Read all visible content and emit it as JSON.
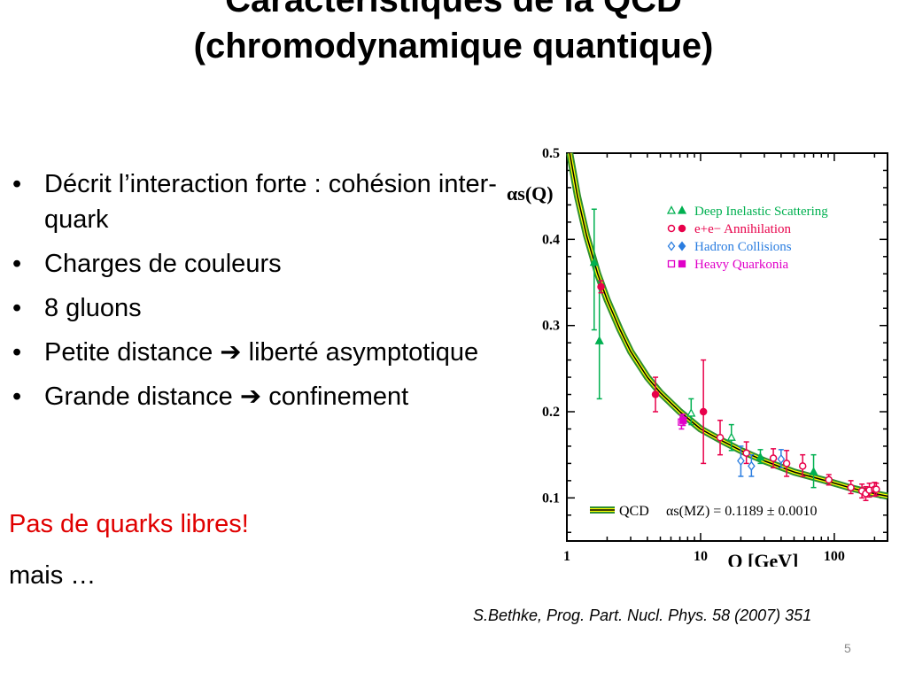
{
  "slide": {
    "title_line1": "Caractéristiques de la QCD",
    "title_line2": "(chromodynamique quantique)",
    "bullets": [
      {
        "bullet": "•",
        "text": "Décrit l’interaction forte : cohésion inter-quark"
      },
      {
        "bullet": "•",
        "text": "Charges de couleurs"
      },
      {
        "bullet": "•",
        "text": "8 gluons"
      },
      {
        "bullet": "•",
        "text": "Petite distance ➔ liberté asymptotique"
      },
      {
        "bullet": "•",
        "text": "Grande distance ➔ confinement"
      }
    ],
    "highlight": "Pas de quarks libres!",
    "continuation": "mais …",
    "citation": "S.Bethke, Prog. Part. Nucl. Phys. 58 (2007) 351",
    "page_number": "5"
  },
  "colors": {
    "dis": "#00b050",
    "ee": "#e8004a",
    "hadron": "#2a7de0",
    "quarkonia": "#e000c8",
    "band": "#2f8f2f",
    "band_fill": "#ffff00"
  },
  "chart_data": {
    "type": "scatter",
    "xscale": "log",
    "xlim": [
      1,
      250
    ],
    "ylim": [
      0.05,
      0.5
    ],
    "xlabel": "Q [GeV]",
    "ylabel": "αs(Q)",
    "xticks": [
      {
        "v": 1,
        "label": "1"
      },
      {
        "v": 10,
        "label": "10"
      },
      {
        "v": 100,
        "label": "100"
      }
    ],
    "yticks": [
      {
        "v": 0.1,
        "label": "0.1"
      },
      {
        "v": 0.2,
        "label": "0.2"
      },
      {
        "v": 0.3,
        "label": "0.3"
      },
      {
        "v": 0.4,
        "label": "0.4"
      },
      {
        "v": 0.5,
        "label": "0.5"
      }
    ],
    "grid": false,
    "legend_position": "top-right",
    "curve": {
      "name": "QCD",
      "annotation": "αs(MZ) = 0.1189 ± 0.0010",
      "points": [
        [
          1.05,
          0.5
        ],
        [
          1.2,
          0.45
        ],
        [
          1.4,
          0.405
        ],
        [
          1.7,
          0.36
        ],
        [
          2,
          0.33
        ],
        [
          2.5,
          0.295
        ],
        [
          3,
          0.27
        ],
        [
          4,
          0.24
        ],
        [
          5,
          0.222
        ],
        [
          7,
          0.2
        ],
        [
          10,
          0.18
        ],
        [
          15,
          0.165
        ],
        [
          20,
          0.155
        ],
        [
          30,
          0.143
        ],
        [
          50,
          0.13
        ],
        [
          91.2,
          0.1189
        ],
        [
          130,
          0.112
        ],
        [
          200,
          0.105
        ],
        [
          250,
          0.102
        ]
      ]
    },
    "series": [
      {
        "name": "Deep Inelastic Scattering",
        "symbol": "triangle",
        "color_key": "dis",
        "points": [
          {
            "x": 1.6,
            "y": 0.373,
            "lo": 0.295,
            "hi": 0.435,
            "filled": true
          },
          {
            "x": 1.75,
            "y": 0.282,
            "lo": 0.215,
            "hi": 0.352,
            "filled": true
          },
          {
            "x": 8.5,
            "y": 0.198,
            "lo": 0.185,
            "hi": 0.215,
            "filled": false
          },
          {
            "x": 17,
            "y": 0.17,
            "lo": 0.155,
            "hi": 0.185,
            "filled": false
          },
          {
            "x": 28,
            "y": 0.147,
            "lo": 0.14,
            "hi": 0.156,
            "filled": true
          },
          {
            "x": 70,
            "y": 0.13,
            "lo": 0.112,
            "hi": 0.15,
            "filled": true
          }
        ]
      },
      {
        "name": "e+e− Annihilation",
        "symbol": "circle",
        "color_key": "ee",
        "points": [
          {
            "x": 1.8,
            "y": 0.345,
            "lo": 0.338,
            "hi": 0.352,
            "filled": true
          },
          {
            "x": 4.6,
            "y": 0.22,
            "lo": 0.2,
            "hi": 0.24,
            "filled": true
          },
          {
            "x": 10.5,
            "y": 0.2,
            "lo": 0.14,
            "hi": 0.26,
            "filled": true
          },
          {
            "x": 14,
            "y": 0.17,
            "lo": 0.15,
            "hi": 0.19,
            "filled": false
          },
          {
            "x": 22,
            "y": 0.152,
            "lo": 0.14,
            "hi": 0.165,
            "filled": false
          },
          {
            "x": 35,
            "y": 0.146,
            "lo": 0.135,
            "hi": 0.157,
            "filled": false
          },
          {
            "x": 44,
            "y": 0.14,
            "lo": 0.125,
            "hi": 0.155,
            "filled": false
          },
          {
            "x": 58,
            "y": 0.137,
            "lo": 0.125,
            "hi": 0.15,
            "filled": false
          },
          {
            "x": 91,
            "y": 0.121,
            "lo": 0.115,
            "hi": 0.127,
            "filled": false
          },
          {
            "x": 133,
            "y": 0.112,
            "lo": 0.105,
            "hi": 0.12,
            "filled": false
          },
          {
            "x": 161,
            "y": 0.108,
            "lo": 0.1,
            "hi": 0.116,
            "filled": false
          },
          {
            "x": 172,
            "y": 0.105,
            "lo": 0.097,
            "hi": 0.113,
            "filled": false
          },
          {
            "x": 183,
            "y": 0.109,
            "lo": 0.101,
            "hi": 0.117,
            "filled": false
          },
          {
            "x": 200,
            "y": 0.11,
            "lo": 0.102,
            "hi": 0.118,
            "filled": false
          },
          {
            "x": 206,
            "y": 0.11,
            "lo": 0.103,
            "hi": 0.117,
            "filled": false
          }
        ]
      },
      {
        "name": "Hadron Collisions",
        "symbol": "diamond",
        "color_key": "hadron",
        "points": [
          {
            "x": 20,
            "y": 0.143,
            "lo": 0.125,
            "hi": 0.16,
            "filled": false
          },
          {
            "x": 24,
            "y": 0.137,
            "lo": 0.125,
            "hi": 0.15,
            "filled": false
          },
          {
            "x": 40,
            "y": 0.145,
            "lo": 0.135,
            "hi": 0.156,
            "filled": false
          }
        ]
      },
      {
        "name": "Heavy Quarkonia",
        "symbol": "square",
        "color_key": "quarkonia",
        "points": [
          {
            "x": 7.2,
            "y": 0.188,
            "lo": 0.18,
            "hi": 0.196,
            "filled": false
          },
          {
            "x": 7.4,
            "y": 0.19,
            "lo": 0.184,
            "hi": 0.197,
            "filled": true
          }
        ]
      }
    ]
  }
}
